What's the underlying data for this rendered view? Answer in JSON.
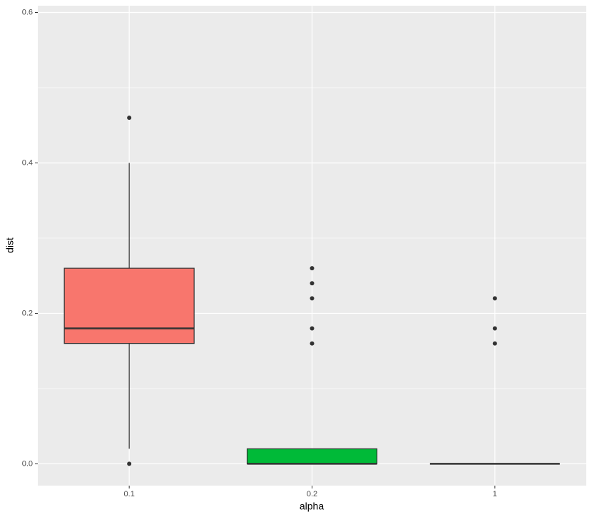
{
  "chart_data": {
    "type": "boxplot",
    "x_label": "alpha",
    "y_label": "dist",
    "categories": [
      "0.1",
      "0.2",
      "1"
    ],
    "boxes": [
      {
        "color": "#F8766D",
        "whisker_low": 0.02,
        "q1": 0.16,
        "median": 0.18,
        "q3": 0.26,
        "whisker_high": 0.4,
        "outliers": [
          0.46,
          0.0
        ]
      },
      {
        "color": "#00BA38",
        "whisker_low": 0.0,
        "q1": 0.0,
        "median": 0.0,
        "q3": 0.02,
        "whisker_high": 0.02,
        "outliers": [
          0.16,
          0.18,
          0.22,
          0.24,
          0.26
        ]
      },
      {
        "color": "#619CFF",
        "whisker_low": 0.0,
        "q1": 0.0,
        "median": 0.0,
        "q3": 0.0,
        "whisker_high": 0.0,
        "outliers": [
          0.16,
          0.18,
          0.22
        ]
      }
    ],
    "ylim": [
      -0.029,
      0.609
    ],
    "yticks": [
      {
        "value": 0,
        "label": "0.0"
      },
      0.2,
      0.4,
      0.6
    ],
    "yminor": [
      0.1,
      0.3,
      0.5
    ],
    "grid": true
  }
}
